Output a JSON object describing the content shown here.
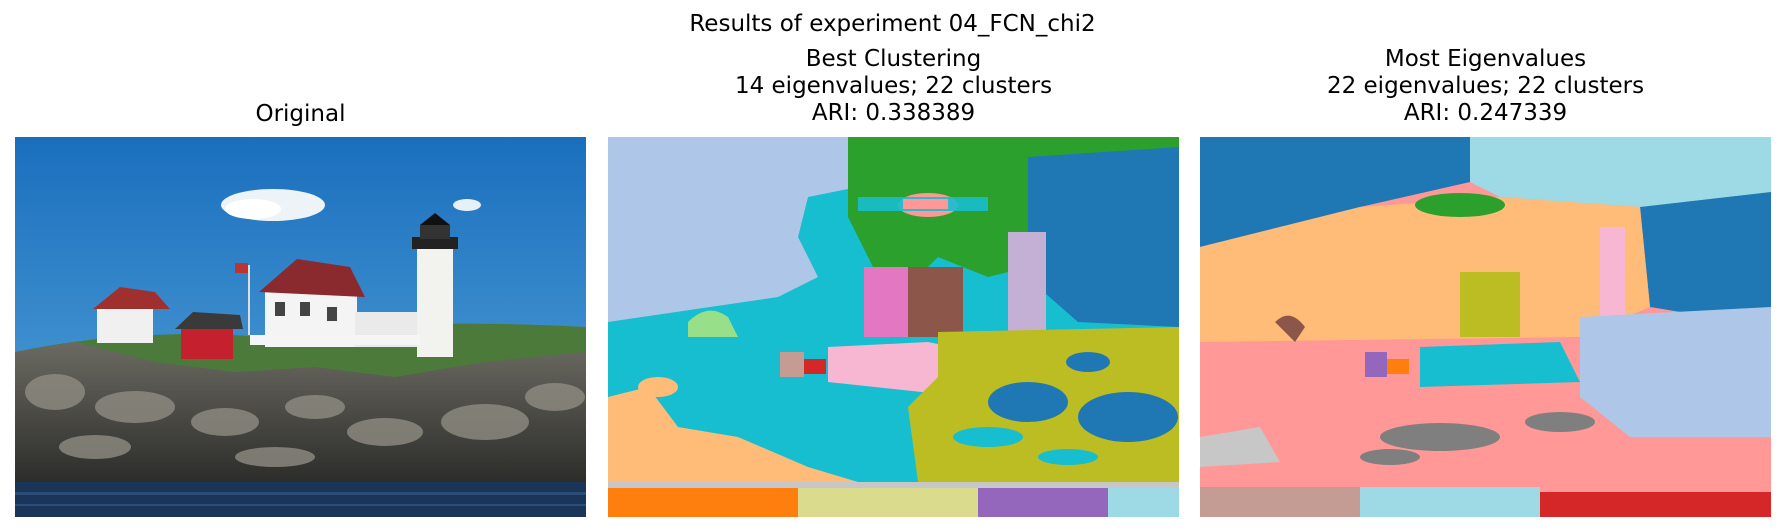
{
  "figure": {
    "suptitle": "Results of experiment 04_FCN_chi2"
  },
  "panels": [
    {
      "lines": [
        "Original"
      ]
    },
    {
      "lines": [
        "Best Clustering",
        "14 eigenvalues; 22 clusters",
        "ARI: 0.338389"
      ]
    },
    {
      "lines": [
        "Most Eigenvalues",
        "22 eigenvalues; 22 clusters",
        "ARI: 0.247339"
      ]
    }
  ],
  "colors": {
    "sky": "#1f77c8",
    "lightblue": "#aec7e8",
    "green": "#2ca02c",
    "cyan": "#17becf",
    "olive": "#bcbd22",
    "peach": "#ffbb78",
    "orange": "#ff7f0e",
    "pink": "#f7b6d2",
    "salmon": "#ff9896",
    "purple": "#9467bd",
    "gray": "#7f7f7f",
    "lightgray": "#c7c7c7",
    "lightcyan": "#9edae5",
    "red": "#d62728",
    "brown": "#8c564b",
    "tan": "#c49c94",
    "khaki": "#dbdb8d"
  }
}
